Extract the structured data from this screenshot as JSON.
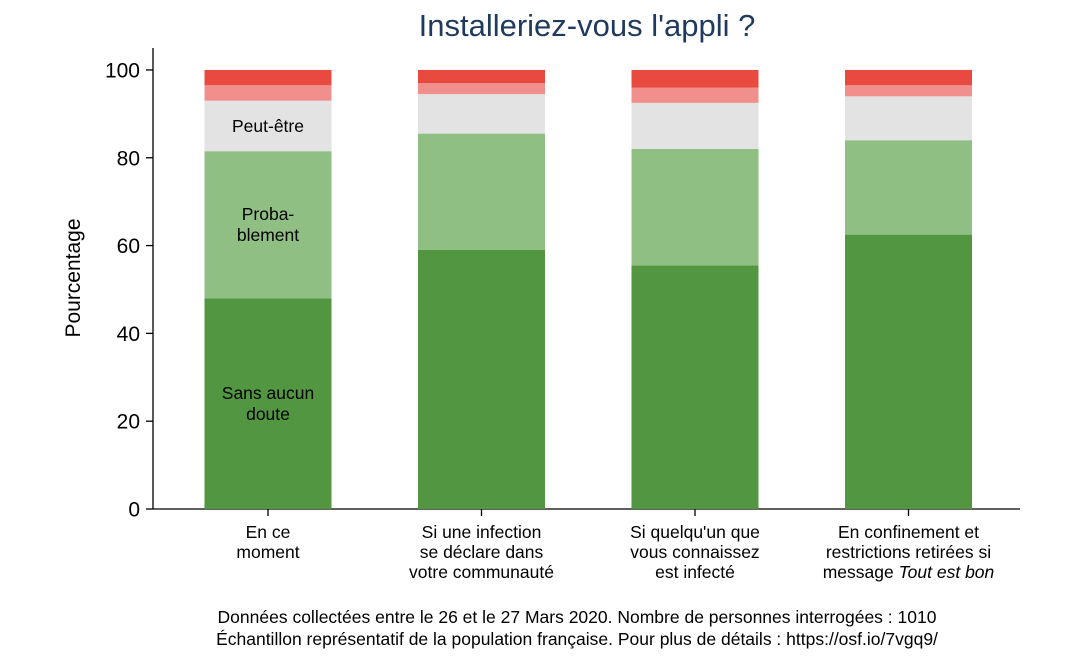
{
  "chart_data": {
    "type": "bar",
    "stacked": true,
    "title": "Installeriez-vous l'appli ?",
    "ylabel": "Pourcentage",
    "ylim": [
      0,
      105
    ],
    "yticks": [
      0,
      20,
      40,
      60,
      80,
      100
    ],
    "categories": [
      [
        "En ce",
        "moment"
      ],
      [
        "Si une infection",
        "se déclare dans",
        "votre communauté"
      ],
      [
        "Si quelqu'un que",
        "vous connaissez",
        "est infecté"
      ],
      [
        "En confinement et",
        "restrictions retirées si",
        "message |Tout est bon"
      ]
    ],
    "series": [
      {
        "key": "sans_aucun_doute",
        "name": "Sans aucun doute",
        "label_lines": [
          "Sans aucun",
          "doute"
        ],
        "color": "#529641",
        "values": [
          48,
          59,
          55.5,
          62.5
        ]
      },
      {
        "key": "probablement",
        "name": "Probablement",
        "label_lines": [
          "Proba-",
          "blement"
        ],
        "color": "#8fbf83",
        "values": [
          33.5,
          26.5,
          26.5,
          21.5
        ]
      },
      {
        "key": "peut_etre",
        "name": "Peut-être",
        "label_lines": [
          "Peut-être"
        ],
        "color": "#e3e3e3",
        "values": [
          11.5,
          9,
          10.5,
          10
        ]
      },
      {
        "key": "probablement_pas",
        "color": "#f08f8c",
        "values": [
          3.5,
          2.5,
          3.5,
          2.5
        ]
      },
      {
        "key": "surement_pas",
        "color": "#e84a3f",
        "values": [
          3.5,
          3,
          4,
          3.5
        ]
      }
    ],
    "notes": [
      "Données collectées entre le 26 et le 27 Mars 2020. Nombre de personnes interrogées : 1010",
      "Échantillon représentatif de la population française. Pour plus de détails : https://osf.io/7vgq9/"
    ]
  }
}
